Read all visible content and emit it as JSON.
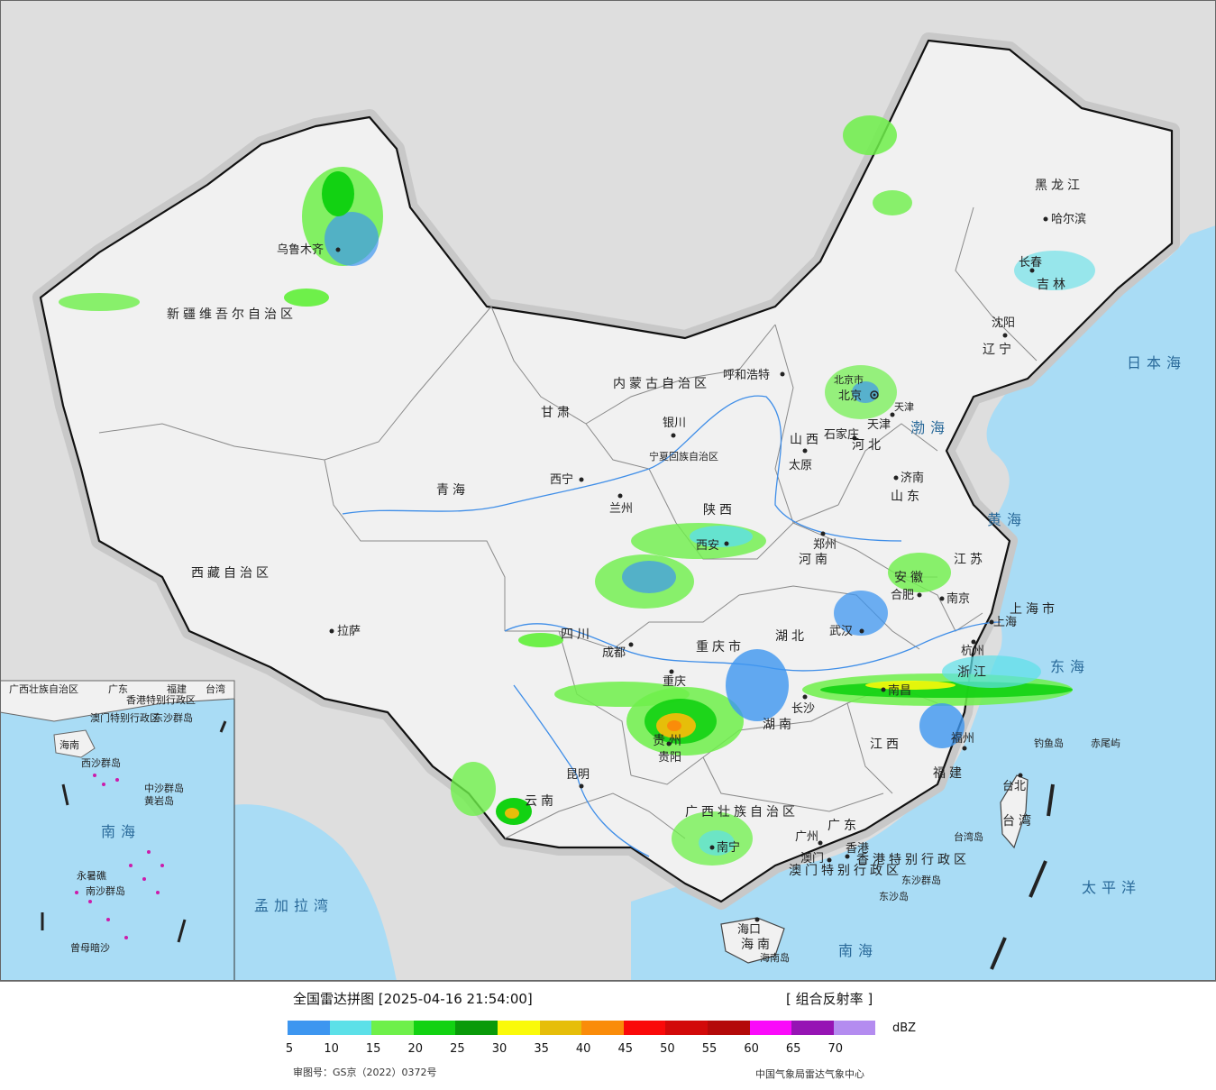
{
  "map": {
    "provinces": [
      {
        "name": "新疆维吾尔自治区",
        "key": "xinjiang"
      },
      {
        "name": "西藏自治区",
        "key": "xizang"
      },
      {
        "name": "青海",
        "key": "qinghai"
      },
      {
        "name": "甘肃",
        "key": "gansu"
      },
      {
        "name": "内蒙古自治区",
        "key": "neimenggu"
      },
      {
        "name": "黑龙江",
        "key": "heilongjiang"
      },
      {
        "name": "吉林",
        "key": "jilin"
      },
      {
        "name": "辽宁",
        "key": "liaoning"
      },
      {
        "name": "河北",
        "key": "hebei"
      },
      {
        "name": "山西",
        "key": "shanxi"
      },
      {
        "name": "山东",
        "key": "shandong"
      },
      {
        "name": "陕西",
        "key": "shaanxi"
      },
      {
        "name": "河南",
        "key": "henan"
      },
      {
        "name": "江苏",
        "key": "jiangsu"
      },
      {
        "name": "安徽",
        "key": "anhui"
      },
      {
        "name": "上海市",
        "key": "shanghai"
      },
      {
        "name": "浙江",
        "key": "zhejiang"
      },
      {
        "name": "湖北",
        "key": "hubei"
      },
      {
        "name": "四川",
        "key": "sichuan"
      },
      {
        "name": "重庆市",
        "key": "chongqing"
      },
      {
        "name": "湖南",
        "key": "hunan"
      },
      {
        "name": "江西",
        "key": "jiangxi"
      },
      {
        "name": "福建",
        "key": "fujian"
      },
      {
        "name": "贵州",
        "key": "guizhou"
      },
      {
        "name": "云南",
        "key": "yunnan"
      },
      {
        "name": "广西壮族自治区",
        "key": "guangxi"
      },
      {
        "name": "广东",
        "key": "guangdong"
      },
      {
        "name": "海南",
        "key": "hainan"
      },
      {
        "name": "台湾",
        "key": "taiwan"
      },
      {
        "name": "宁夏回族自治区",
        "key": "ningxia"
      },
      {
        "name": "北京市",
        "key": "beijing_prov"
      },
      {
        "name": "天津",
        "key": "tianjin_prov"
      },
      {
        "name": "香港特别行政区",
        "key": "hk"
      },
      {
        "name": "澳门特别行政区",
        "key": "macao"
      }
    ],
    "cities": {
      "wulumuqi": "乌鲁木齐",
      "lasa": "拉萨",
      "xining": "西宁",
      "lanzhou": "兰州",
      "yinchuan": "银川",
      "huhehaote": "呼和浩特",
      "beijing": "北京",
      "tianjin": "天津",
      "shijiazhuang": "石家庄",
      "taiyuan": "太原",
      "jinan": "济南",
      "zhengzhou": "郑州",
      "xian": "西安",
      "hefei": "合肥",
      "nanjing": "南京",
      "shanghai": "上海",
      "hangzhou": "杭州",
      "wuhan": "武汉",
      "chengdu": "成都",
      "chongqing": "重庆",
      "changsha": "长沙",
      "nanchang": "南昌",
      "fuzhou": "福州",
      "guiyang": "贵阳",
      "kunming": "昆明",
      "nanning": "南宁",
      "guangzhou": "广州",
      "hongkong": "香港",
      "macau": "澳门",
      "haikou": "海口",
      "taibei": "台北",
      "haerbin": "哈尔滨",
      "changchun": "长春",
      "shenyang": "沈阳"
    },
    "seas": {
      "bohai": "渤海",
      "huanghai": "黄海",
      "donghai": "东海",
      "nanhai": "南海",
      "taipingyang": "太平洋",
      "ribenhai": "日本海",
      "mengjialawan": "孟加拉湾"
    },
    "islands": {
      "diaoyu": "钓鱼岛",
      "chiwei": "赤尾屿",
      "taiwandao": "台湾岛",
      "hainandao": "海南岛",
      "dongsha_qundao": "东沙群岛",
      "dongsha_dao": "东沙岛"
    },
    "inset": {
      "labels": [
        "广东",
        "福建",
        "台湾",
        "香港特别行政区",
        "澳门特别行政区",
        "东沙群岛",
        "海南",
        "西沙群岛",
        "中沙群岛",
        "黄岩岛",
        "南海",
        "南沙群岛",
        "永暑礁",
        "曾母暗沙",
        "广西壮族自治区"
      ]
    }
  },
  "legend": {
    "title": "全国雷达拼图 [2025-04-16 21:54:00]",
    "product": "[ 组合反射率 ]",
    "unit": "dBZ",
    "colors": [
      "#3d96f0",
      "#5ce0e8",
      "#6ef04a",
      "#12d212",
      "#0a9a0a",
      "#fafa0a",
      "#e6be0a",
      "#fa8c0a",
      "#fa0a0a",
      "#d20a0a",
      "#b40a0a",
      "#fa0afa",
      "#9614b4",
      "#b48cf0"
    ],
    "ticks": [
      "5",
      "10",
      "15",
      "20",
      "25",
      "30",
      "35",
      "40",
      "45",
      "50",
      "55",
      "60",
      "65",
      "70"
    ],
    "approval": "审图号：GS京（2022）0372号",
    "credit": "中国气象局雷达气象中心"
  }
}
